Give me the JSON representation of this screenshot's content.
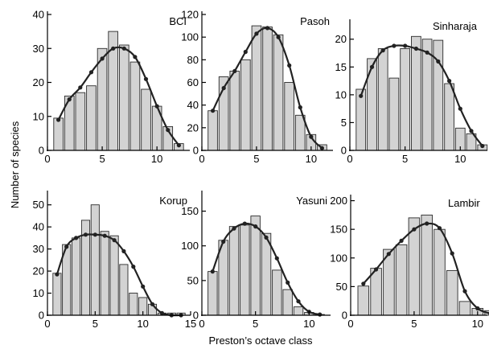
{
  "figure": {
    "ylabel": "Number of species",
    "xlabel": "Preston’s octave class"
  },
  "colors": {
    "bar_fill": "#d3d3d3",
    "bar_stroke": "#2b2b2b",
    "curve": "#222222"
  },
  "chart_data": [
    {
      "type": "bar",
      "title": "BCI",
      "x": [
        1,
        2,
        3,
        4,
        5,
        6,
        7,
        8,
        9,
        10,
        11,
        12
      ],
      "values": [
        9.5,
        16,
        17,
        19,
        30,
        35,
        31,
        26,
        18,
        13,
        7,
        2
      ],
      "fit_y": [
        9,
        15,
        18.5,
        23,
        27,
        30,
        30,
        27.5,
        21,
        13,
        6,
        1.5
      ],
      "xlim": [
        0,
        13
      ],
      "ylim": [
        0,
        40
      ],
      "xticks": [
        0,
        5,
        10
      ],
      "yticks": [
        0,
        10,
        20,
        30,
        40
      ]
    },
    {
      "type": "bar",
      "title": "Pasoh",
      "x": [
        1,
        2,
        3,
        4,
        5,
        6,
        7,
        8,
        9,
        10,
        11
      ],
      "values": [
        35,
        65,
        70,
        80,
        110,
        109,
        102,
        60,
        31,
        14,
        5
      ],
      "fit_y": [
        35,
        55,
        70,
        87,
        103,
        108,
        100,
        75,
        38,
        12,
        2
      ],
      "xlim": [
        0,
        12
      ],
      "ylim": [
        0,
        120
      ],
      "xticks": [
        0,
        5,
        10
      ],
      "yticks": [
        0,
        20,
        40,
        60,
        80,
        100,
        120
      ]
    },
    {
      "type": "bar",
      "title": "Sinharaja",
      "x": [
        1,
        2,
        3,
        4,
        5,
        6,
        7,
        8,
        9,
        10,
        11,
        12
      ],
      "values": [
        11,
        16.5,
        18.3,
        13,
        18.3,
        20.5,
        20,
        19.8,
        12,
        4,
        3,
        1
      ],
      "fit_y": [
        9.8,
        15,
        18,
        18.8,
        18.8,
        18.3,
        17.6,
        16,
        12.5,
        7.5,
        3.5,
        0.8
      ],
      "xlim": [
        0,
        12.6
      ],
      "ylim": [
        0,
        23
      ],
      "xticks": [
        0,
        5,
        10
      ],
      "yticks": [
        0,
        5,
        10,
        15,
        20
      ]
    },
    {
      "type": "bar",
      "title": "Korup",
      "x": [
        1,
        2,
        3,
        4,
        5,
        6,
        7,
        8,
        9,
        10,
        11,
        12,
        13,
        14
      ],
      "values": [
        19,
        32,
        35,
        43,
        50,
        38,
        36,
        23,
        10,
        8,
        5,
        1,
        1,
        1
      ],
      "fit_y": [
        18.5,
        31,
        35,
        36.5,
        36.5,
        36,
        34,
        29,
        22,
        13,
        5,
        1,
        0,
        0
      ],
      "xlim": [
        0,
        15
      ],
      "ylim": [
        0,
        55
      ],
      "xticks": [
        0,
        5,
        10,
        15
      ],
      "yticks": [
        0,
        10,
        20,
        30,
        40,
        50
      ]
    },
    {
      "type": "bar",
      "title": "Yasuni",
      "x": [
        1,
        2,
        3,
        4,
        5,
        6,
        7,
        8,
        9,
        10,
        11
      ],
      "values": [
        63,
        108,
        128,
        130,
        143,
        118,
        65,
        37,
        12,
        4,
        1
      ],
      "fit_y": [
        63,
        106,
        125,
        132,
        128,
        112,
        82,
        47,
        20,
        5,
        1
      ],
      "xlim": [
        0,
        12
      ],
      "ylim": [
        0,
        175
      ],
      "xticks": [
        0,
        5,
        10
      ],
      "yticks": [
        0,
        50,
        100,
        150
      ]
    },
    {
      "type": "bar",
      "title": "Lambir",
      "x": [
        1,
        2,
        3,
        4,
        5,
        6,
        7,
        8,
        9,
        10,
        11
      ],
      "values": [
        51,
        82,
        115,
        123,
        170,
        175,
        150,
        78,
        24,
        12,
        8
      ],
      "fit_y": [
        55,
        80,
        107,
        130,
        150,
        160,
        152,
        108,
        42,
        12,
        3
      ],
      "xlim": [
        0,
        10.9
      ],
      "ylim": [
        0,
        205
      ],
      "xticks": [
        0,
        5,
        10
      ],
      "yticks": [
        0,
        50,
        100,
        150,
        200
      ]
    }
  ]
}
